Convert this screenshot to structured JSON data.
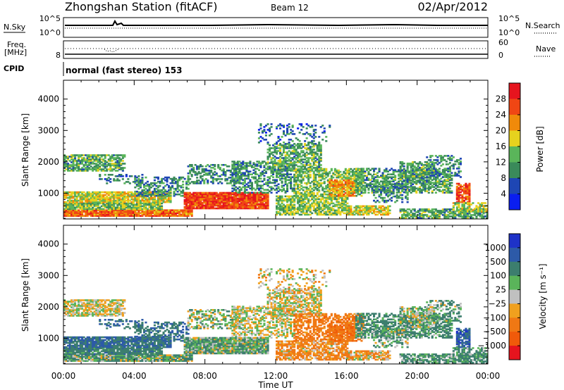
{
  "header": {
    "station": "Zhongshan Station (fitACF)",
    "beam": "Beam 12",
    "date": "02/Apr/2012"
  },
  "top_panels": {
    "noise_left_label": "N.Sky",
    "noise_left_ticks": [
      "10^5",
      "10^0"
    ],
    "noise_right_label": "N.Search",
    "noise_right_ticks": [
      "10^5",
      "10^0"
    ],
    "freq_label_1": "Freq.",
    "freq_label_2": "[MHz]",
    "freq_left_tick": "8",
    "freq_right_ticks": [
      "60",
      "0"
    ],
    "nave_label": "Nave",
    "cpid_label": "CPID",
    "cpid_text": "normal (fast stereo) 153"
  },
  "chart_data": [
    {
      "type": "heatmap",
      "name": "power",
      "ylabel": "Slant Range [km]",
      "ylim": [
        180,
        4600
      ],
      "yticks": [
        "1000",
        "2000",
        "3000",
        "4000"
      ],
      "xlim": [
        0,
        24
      ],
      "colorbar": {
        "label": "Power [dB]",
        "ticks": [
          "4",
          "8",
          "12",
          "16",
          "20",
          "24",
          "28"
        ],
        "colors": [
          "#0a1ef0",
          "#1e46b4",
          "#3a8a5a",
          "#5ab55a",
          "#e6d21e",
          "#f08a0a",
          "#f04614",
          "#e6141e"
        ]
      }
    },
    {
      "type": "heatmap",
      "name": "velocity",
      "ylabel": "Slant Range [km]",
      "ylim": [
        180,
        4600
      ],
      "yticks": [
        "1000",
        "2000",
        "3000",
        "4000"
      ],
      "xlim": [
        0,
        24
      ],
      "xticks": [
        "00:00",
        "04:00",
        "08:00",
        "12:00",
        "16:00",
        "20:00",
        "00:00"
      ],
      "xlabel": "Time UT",
      "colorbar": {
        "label": "Velocity [m s⁻¹]",
        "ticks": [
          "1000",
          "500",
          "100",
          "25",
          "−25",
          "−100",
          "−500",
          "−1000"
        ],
        "colors": [
          "#1e32c8",
          "#2d5aa8",
          "#3c7e6e",
          "#5ab45a",
          "#c0c0c0",
          "#f0a01e",
          "#f07814",
          "#f05a0a",
          "#e6141e"
        ]
      }
    }
  ]
}
